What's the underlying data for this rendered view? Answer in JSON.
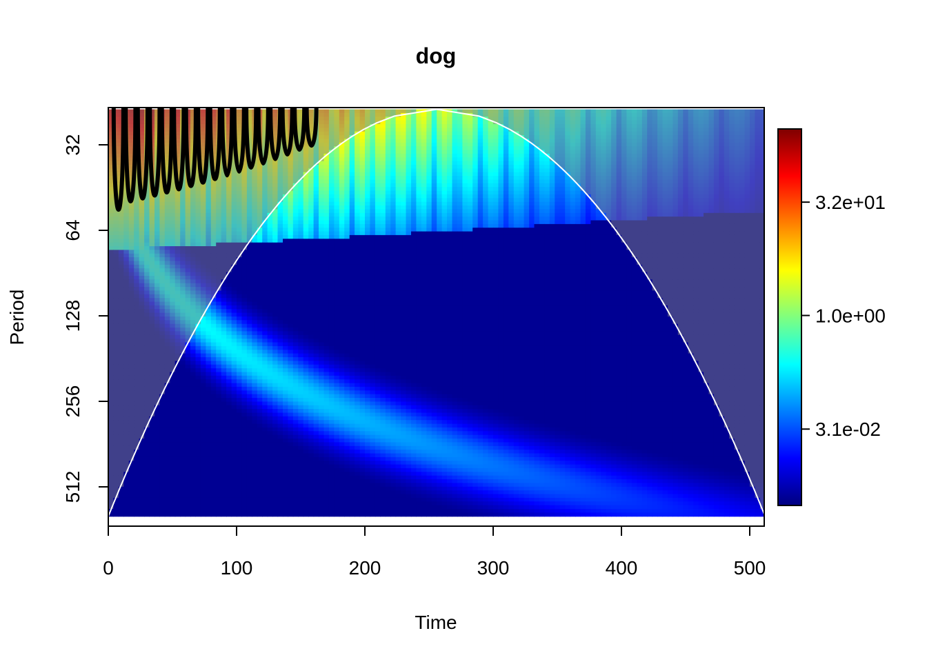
{
  "chart_data": {
    "type": "heatmap",
    "title": "dog",
    "xlabel": "Time",
    "ylabel": "Period",
    "xlim": [
      0,
      508
    ],
    "x_ticks": [
      0,
      100,
      200,
      300,
      400,
      500
    ],
    "x_tick_labels": [
      "0",
      "100",
      "200",
      "300",
      "400",
      "500"
    ],
    "y_scale": "log2",
    "ylim": [
      24,
      650
    ],
    "y_ticks": [
      32,
      64,
      128,
      256,
      512
    ],
    "y_tick_labels": [
      "32",
      "64",
      "128",
      "256",
      "512"
    ],
    "y_reversed": true,
    "colorbar": {
      "scale": "log",
      "range": [
        0.003,
        300
      ],
      "ticks": [
        32,
        1.0,
        0.031
      ],
      "tick_labels": [
        "3.2e+01",
        "1.0e+00",
        "3.1e-02"
      ],
      "colormap": [
        "#00007F",
        "#0000FF",
        "#007FFF",
        "#00FFFF",
        "#7FFF7F",
        "#FFFF00",
        "#FF7F00",
        "#FF0000",
        "#7F0000"
      ]
    },
    "description_series": {
      "signal_end_time": 512,
      "high_power_region": {
        "time_range": [
          0,
          165
        ],
        "period_range": [
          24,
          64
        ]
      },
      "oscillation_band": {
        "time_range": [
          0,
          508
        ],
        "period_range": [
          24,
          80
        ]
      },
      "low_power_floor_value": 0.003
    },
    "cone_of_influence": {
      "apex_time": 256,
      "apex_period": 650,
      "color": "#FFFFFF"
    },
    "significance_contour_color": "#000000"
  }
}
